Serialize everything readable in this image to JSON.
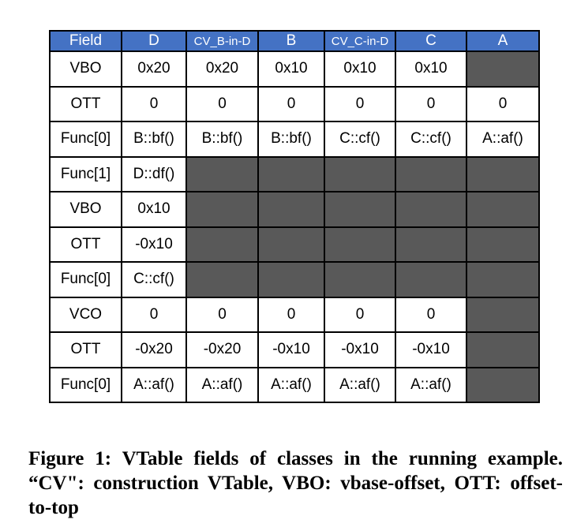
{
  "colors": {
    "header_bg": "#4472C4",
    "header_text": "#FFFFFF",
    "filled_cell": "#595959",
    "cell_bg": "#FFFFFF",
    "border": "#000000"
  },
  "table": {
    "columns": [
      "Field",
      "D",
      "CV_B-in-D",
      "B",
      "CV_C-in-D",
      "C",
      "A"
    ],
    "rows": [
      {
        "label": "VBO",
        "cells": [
          "0x20",
          "0x20",
          "0x10",
          "0x10",
          "0x10",
          null
        ]
      },
      {
        "label": "OTT",
        "cells": [
          "0",
          "0",
          "0",
          "0",
          "0",
          "0"
        ]
      },
      {
        "label": "Func[0]",
        "cells": [
          "B::bf()",
          "B::bf()",
          "B::bf()",
          "C::cf()",
          "C::cf()",
          "A::af()"
        ]
      },
      {
        "label": "Func[1]",
        "cells": [
          "D::df()",
          null,
          null,
          null,
          null,
          null
        ]
      },
      {
        "label": "VBO",
        "cells": [
          "0x10",
          null,
          null,
          null,
          null,
          null
        ]
      },
      {
        "label": "OTT",
        "cells": [
          "-0x10",
          null,
          null,
          null,
          null,
          null
        ]
      },
      {
        "label": "Func[0]",
        "cells": [
          "C::cf()",
          null,
          null,
          null,
          null,
          null
        ]
      },
      {
        "label": "VCO",
        "cells": [
          "0",
          "0",
          "0",
          "0",
          "0",
          null
        ]
      },
      {
        "label": "OTT",
        "cells": [
          "-0x20",
          "-0x20",
          "-0x10",
          "-0x10",
          "-0x10",
          null
        ]
      },
      {
        "label": "Func[0]",
        "cells": [
          "A::af()",
          "A::af()",
          "A::af()",
          "A::af()",
          "A::af()",
          null
        ]
      }
    ]
  },
  "caption": {
    "lines": [
      "Figure 1: VTable fields of classes in the running example.",
      "“CV\": construction VTable, VBO: vbase-offset, OTT: offset-",
      "to-top"
    ],
    "full_text": "Figure 1: VTable fields of classes in the running example. “CV\": construction VTable, VBO: vbase-offset, OTT: offset-to-top"
  }
}
